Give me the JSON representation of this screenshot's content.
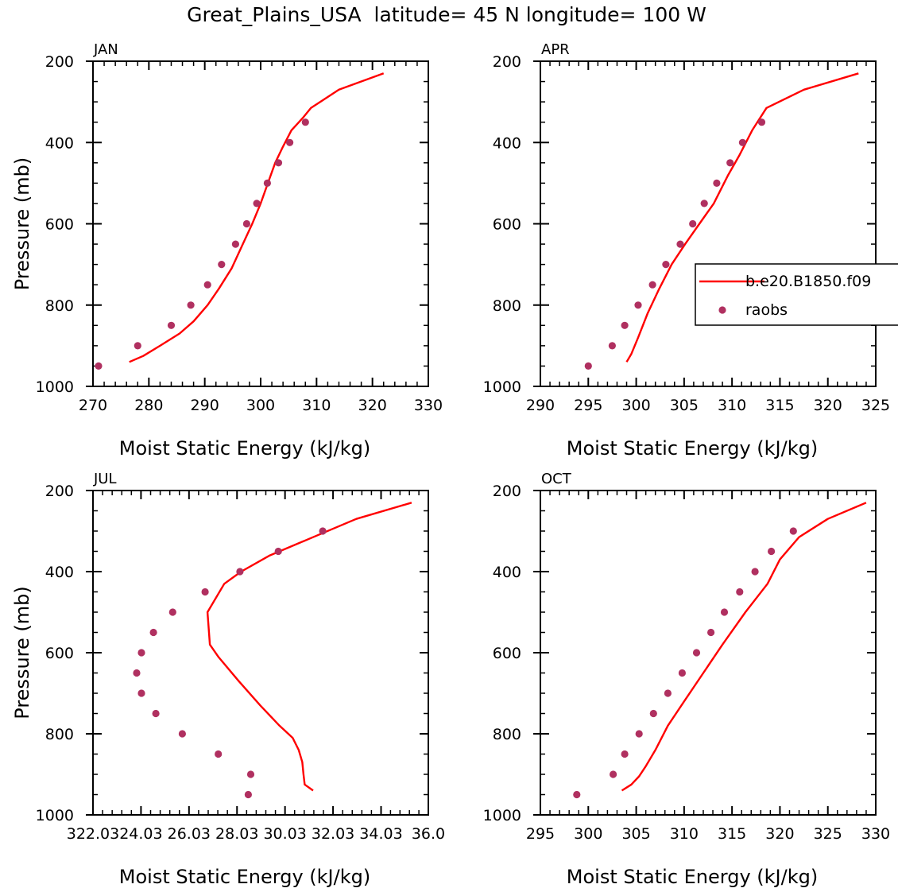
{
  "figure": {
    "title": "Great_Plains_USA  latitude= 45 N longitude= 100 W"
  },
  "colors": {
    "model": "#ff0000",
    "raobs": "#b03060",
    "axis": "#000000"
  },
  "legend": {
    "entries": [
      {
        "label": "b.e20.B1850.f09",
        "style": "line"
      },
      {
        "label": "raobs",
        "style": "marker"
      }
    ],
    "panel": "APR",
    "placement": "right-middle"
  },
  "chart_data": [
    {
      "type": "line",
      "title": "JAN",
      "xlabel": "Moist Static Energy (kJ/kg)",
      "ylabel": "Pressure (mb)",
      "xlim": [
        270,
        330
      ],
      "ylim": [
        1000,
        200
      ],
      "xticks": [
        270,
        280,
        290,
        300,
        310,
        320,
        330
      ],
      "xtick_labels": [
        "270",
        "280",
        "290",
        "300",
        "310",
        "320",
        "330"
      ],
      "yticks": [
        200,
        400,
        600,
        800,
        1000
      ],
      "ytick_labels": [
        "200",
        "400",
        "600",
        "800",
        "1000"
      ],
      "series": [
        {
          "name": "b.e20.B1850.f09",
          "kind": "line",
          "x": [
            276.5,
            279,
            282,
            285.5,
            288,
            290.5,
            292.5,
            294.8,
            296.8,
            298.5,
            300,
            301.3,
            302.6,
            304,
            305.5,
            307.5,
            309,
            314,
            322
          ],
          "y": [
            940,
            925,
            900,
            870,
            840,
            800,
            760,
            710,
            650,
            600,
            550,
            500,
            450,
            410,
            370,
            340,
            315,
            270,
            230
          ]
        },
        {
          "name": "raobs",
          "kind": "scatter",
          "x": [
            271,
            278,
            284,
            287.5,
            290.5,
            293,
            295.5,
            297.5,
            299.3,
            301.2,
            303.2,
            305.2,
            308
          ],
          "y": [
            950,
            900,
            850,
            800,
            750,
            700,
            650,
            600,
            550,
            500,
            450,
            400,
            350
          ]
        }
      ]
    },
    {
      "type": "line",
      "title": "APR",
      "xlabel": "Moist Static Energy (kJ/kg)",
      "ylabel": "",
      "xlim": [
        290,
        325
      ],
      "ylim": [
        1000,
        200
      ],
      "xticks": [
        290,
        295,
        300,
        305,
        310,
        315,
        320,
        325
      ],
      "xtick_labels": [
        "290",
        "295",
        "300",
        "305",
        "310",
        "315",
        "320",
        "325"
      ],
      "yticks": [
        200,
        400,
        600,
        800,
        1000
      ],
      "ytick_labels": [
        "200",
        "400",
        "600",
        "800",
        "1000"
      ],
      "series": [
        {
          "name": "b.e20.B1850.f09",
          "kind": "line",
          "x": [
            299,
            299.5,
            300.2,
            301.2,
            302.4,
            303.7,
            305.1,
            306.6,
            308.1,
            309.6,
            310.8,
            312.1,
            313.6,
            317.5,
            323.2
          ],
          "y": [
            940,
            920,
            880,
            820,
            760,
            700,
            650,
            600,
            550,
            480,
            430,
            370,
            315,
            270,
            230
          ]
        },
        {
          "name": "raobs",
          "kind": "scatter",
          "x": [
            295,
            297.5,
            298.8,
            300.2,
            301.7,
            303.1,
            304.6,
            305.9,
            307.1,
            308.4,
            309.8,
            311.1,
            313.1
          ],
          "y": [
            950,
            900,
            850,
            800,
            750,
            700,
            650,
            600,
            550,
            500,
            450,
            400,
            350
          ]
        }
      ]
    },
    {
      "type": "line",
      "title": "JUL",
      "xlabel": "Moist Static Energy (kJ/kg)",
      "ylabel": "Pressure (mb)",
      "xlim": [
        322.03,
        336.0
      ],
      "ylim": [
        1000,
        200
      ],
      "xticks": [
        322.03,
        324.03,
        326.03,
        328.03,
        330.03,
        332.03,
        334.03,
        336.0
      ],
      "xtick_labels": [
        "322.03",
        "24.03",
        "26.03",
        "28.03",
        "30.03",
        "32.03",
        "34.03",
        "36.0"
      ],
      "yticks": [
        200,
        400,
        600,
        800,
        1000
      ],
      "ytick_labels": [
        "200",
        "400",
        "600",
        "800",
        "1000"
      ],
      "series": [
        {
          "name": "b.e20.B1850.f09",
          "kind": "line",
          "x": [
            331.2,
            330.85,
            330.8,
            330.75,
            330.6,
            330.35,
            329.8,
            329.0,
            328.1,
            327.25,
            326.9,
            326.8,
            327.5,
            328.2,
            329.4,
            331.0,
            333.0,
            335.3
          ],
          "y": [
            940,
            925,
            900,
            870,
            840,
            810,
            780,
            730,
            670,
            610,
            580,
            500,
            430,
            400,
            360,
            320,
            270,
            230
          ]
        },
        {
          "name": "raobs",
          "kind": "scatter",
          "x": [
            328.5,
            328.6,
            327.25,
            325.75,
            324.65,
            324.05,
            323.85,
            324.05,
            324.55,
            325.35,
            326.7,
            328.15,
            329.75,
            331.6
          ],
          "y": [
            950,
            900,
            850,
            800,
            750,
            700,
            650,
            600,
            550,
            500,
            450,
            400,
            350,
            300
          ]
        }
      ]
    },
    {
      "type": "line",
      "title": "OCT",
      "xlabel": "Moist Static Energy (kJ/kg)",
      "ylabel": "",
      "xlim": [
        295,
        330
      ],
      "ylim": [
        1000,
        200
      ],
      "xticks": [
        295,
        300,
        305,
        310,
        315,
        320,
        325,
        330
      ],
      "xtick_labels": [
        "295",
        "300",
        "305",
        "310",
        "315",
        "320",
        "325",
        "330"
      ],
      "yticks": [
        200,
        400,
        600,
        800,
        1000
      ],
      "ytick_labels": [
        "200",
        "400",
        "600",
        "800",
        "1000"
      ],
      "series": [
        {
          "name": "b.e20.B1850.f09",
          "kind": "line",
          "x": [
            303.5,
            304.5,
            305.3,
            306,
            307,
            308.3,
            310,
            312,
            314,
            316.4,
            318.7,
            320,
            322,
            325,
            329
          ],
          "y": [
            940,
            925,
            905,
            880,
            840,
            780,
            720,
            650,
            580,
            500,
            430,
            370,
            315,
            270,
            230
          ]
        },
        {
          "name": "raobs",
          "kind": "scatter",
          "x": [
            298.8,
            302.6,
            303.8,
            305.3,
            306.8,
            308.3,
            309.8,
            311.3,
            312.8,
            314.2,
            315.8,
            317.4,
            319.1,
            321.4
          ],
          "y": [
            950,
            900,
            850,
            800,
            750,
            700,
            650,
            600,
            550,
            500,
            450,
            400,
            350,
            300
          ]
        }
      ]
    }
  ]
}
